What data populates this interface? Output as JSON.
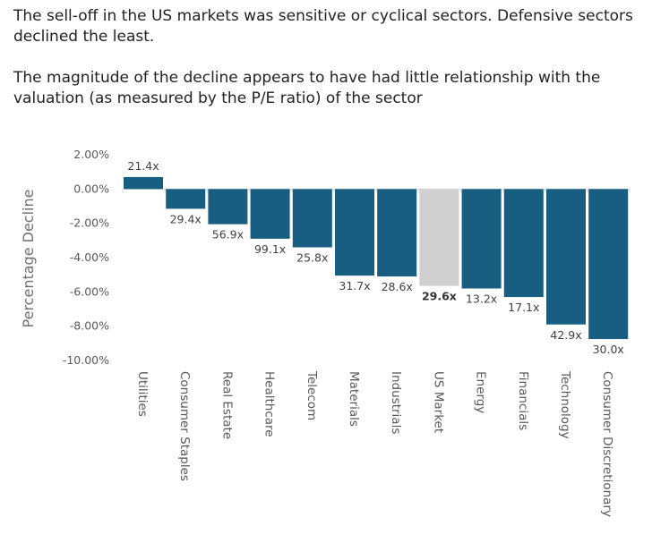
{
  "intro": {
    "paragraph1": "The sell-off in the US markets was sensitive or cyclical sectors. Defensive sectors declined the least.",
    "paragraph2": "The magnitude of the decline appears to have had little relationship with the valuation (as measured by the P/E ratio) of the sector"
  },
  "chart_data": {
    "type": "bar",
    "title": "",
    "xlabel": "",
    "ylabel": "Percentage Decline",
    "ylim": [
      -10,
      2
    ],
    "yticks": [
      "2.00%",
      "0.00%",
      "-2.00%",
      "-4.00%",
      "-6.00%",
      "-8.00%",
      "-10.00%"
    ],
    "ytick_values": [
      2,
      0,
      -2,
      -4,
      -6,
      -8,
      -10
    ],
    "grid": false,
    "categories": [
      "Utilities",
      "Consumer Staples",
      "Real Estate",
      "Healthcare",
      "Telecom",
      "Materials",
      "Industrials",
      "US Market",
      "Energy",
      "Financials",
      "Technology",
      "Consumer Discretionary"
    ],
    "values": [
      0.7,
      -1.15,
      -2.05,
      -2.9,
      -3.4,
      -5.05,
      -5.1,
      -5.65,
      -5.8,
      -6.3,
      -7.9,
      -8.75
    ],
    "data_labels": [
      "21.4x",
      "29.4x",
      "56.9x",
      "99.1x",
      "25.8x",
      "31.7x",
      "28.6x",
      "29.6x",
      "13.2x",
      "17.1x",
      "42.9x",
      "30.0x"
    ],
    "highlight_category": "US Market",
    "colors": {
      "bar": "#175e80",
      "highlight": "#d0d0d0",
      "axis": "#d9d9d9"
    }
  }
}
